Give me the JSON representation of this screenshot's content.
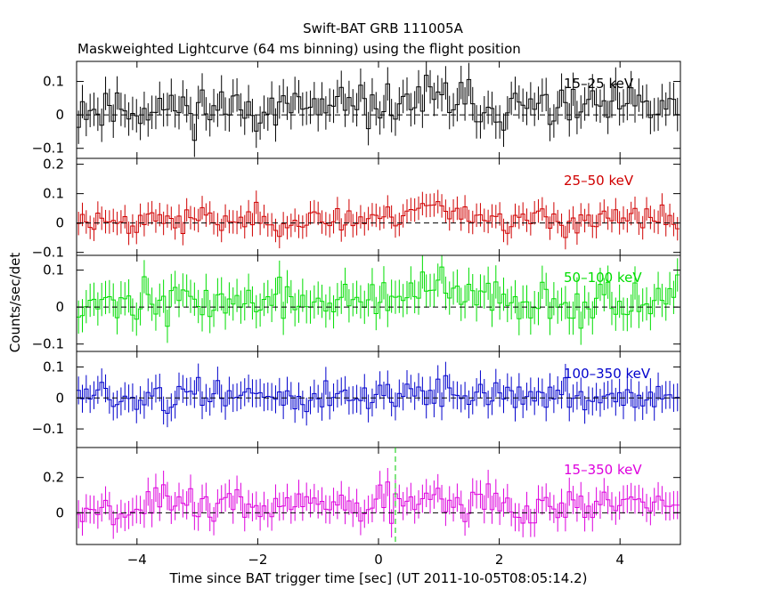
{
  "chart_data": {
    "type": "line",
    "title": "Swift-BAT GRB 111005A",
    "subtitle": "Maskweighted Lightcurve (64 ms binning) using the flight position",
    "xlabel": "Time since BAT trigger time [sec] (UT 2011-10-05T08:05:14.2)",
    "ylabel": "Counts/sec/det",
    "xlim": [
      -5,
      5
    ],
    "x_ticks": [
      -4,
      -2,
      0,
      2,
      4
    ],
    "x_tick_labels": [
      "−4",
      "−2",
      "0",
      "2",
      "4"
    ],
    "bin_width_s": 0.064,
    "marker_time": 0.28,
    "panels": [
      {
        "name": "15-25 keV",
        "label": "15–25 keV",
        "color": "#000000",
        "ylim": [
          -0.13,
          0.16
        ],
        "yticks": [
          -0.1,
          0,
          0.1
        ],
        "ytick_labels": [
          "−0.1",
          "0",
          "0.1"
        ],
        "error": 0.05,
        "noise": 0.045,
        "offset": 0.02,
        "seed": 11,
        "burst": 0.03
      },
      {
        "name": "25-50 keV",
        "label": "25–50 keV",
        "color": "#d00000",
        "ylim": [
          -0.11,
          0.22
        ],
        "yticks": [
          -0.1,
          0,
          0.1,
          0.2
        ],
        "ytick_labels": [
          "−0.1",
          "0",
          "0.1",
          "0.2"
        ],
        "error": 0.04,
        "noise": 0.032,
        "offset": 0.01,
        "seed": 23,
        "burst": 0.05
      },
      {
        "name": "50-100 keV",
        "label": "50–100 keV",
        "color": "#00dd00",
        "ylim": [
          -0.12,
          0.14
        ],
        "yticks": [
          -0.1,
          0,
          0.1
        ],
        "ytick_labels": [
          "−0.1",
          "0",
          "0.1"
        ],
        "error": 0.045,
        "noise": 0.038,
        "offset": 0.015,
        "seed": 37,
        "burst": 0.03
      },
      {
        "name": "100-350 keV",
        "label": "100–350 keV",
        "color": "#0000cc",
        "ylim": [
          -0.16,
          0.15
        ],
        "yticks": [
          -0.1,
          0,
          0.1
        ],
        "ytick_labels": [
          "−0.1",
          "0",
          "0.1"
        ],
        "error": 0.045,
        "noise": 0.035,
        "offset": 0.005,
        "seed": 51,
        "burst": 0.02
      },
      {
        "name": "15-350 keV",
        "label": "15–350 keV",
        "color": "#dd00dd",
        "ylim": [
          -0.18,
          0.37
        ],
        "yticks": [
          0,
          0.2
        ],
        "ytick_labels": [
          "0",
          "0.2"
        ],
        "error": 0.08,
        "noise": 0.075,
        "offset": 0.04,
        "seed": 67,
        "burst": 0.08
      }
    ]
  }
}
